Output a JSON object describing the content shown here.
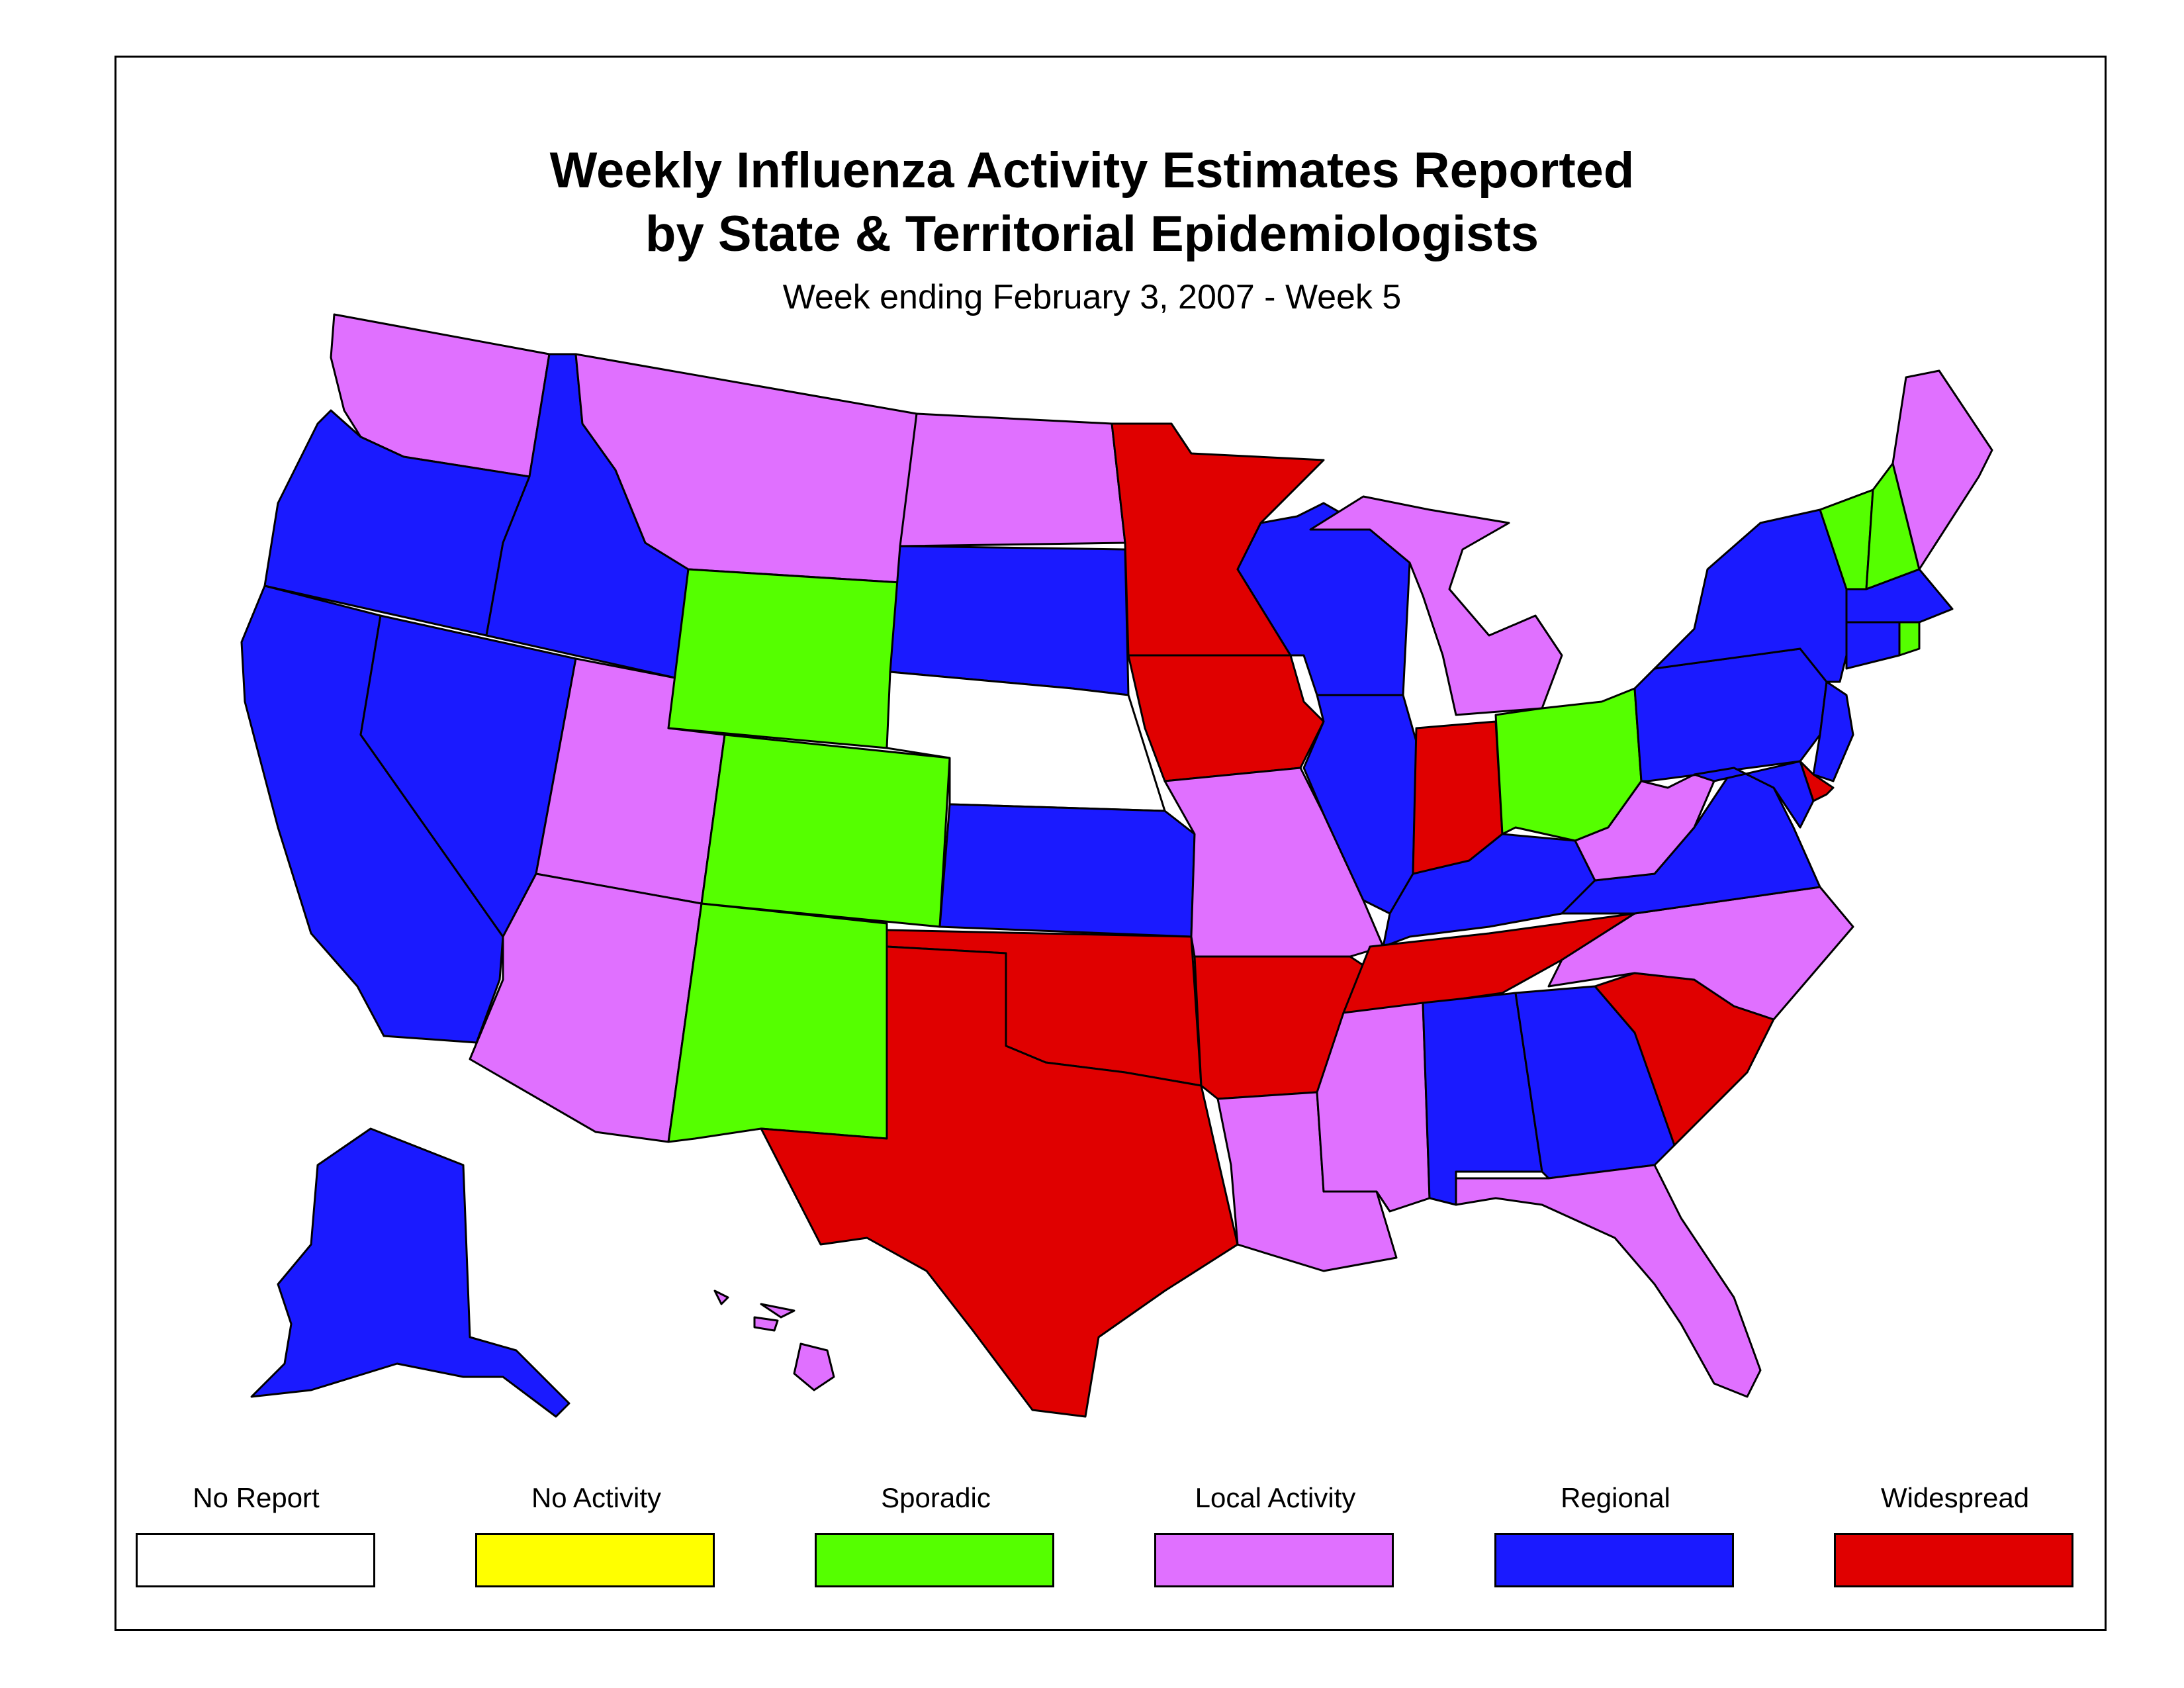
{
  "title_line1": "Weekly Influenza Activity Estimates Reported",
  "title_line2": "by State & Territorial Epidemiologists",
  "subtitle": "Week ending February 3, 2007 - Week 5",
  "legend": [
    {
      "label": "No Report",
      "color": "#ffffff"
    },
    {
      "label": "No Activity",
      "color": "#ffff00"
    },
    {
      "label": "Sporadic",
      "color": "#55ff00"
    },
    {
      "label": "Local Activity",
      "color": "#e070ff"
    },
    {
      "label": "Regional",
      "color": "#1a1aff"
    },
    {
      "label": "Widespread",
      "color": "#e00000"
    }
  ],
  "activity_levels": {
    "Alabama": "Regional",
    "Alaska": "Regional",
    "Arizona": "Local Activity",
    "Arkansas": "Widespread",
    "California": "Regional",
    "Colorado": "Sporadic",
    "Connecticut": "Regional",
    "Delaware": "Widespread",
    "Florida": "Local Activity",
    "Georgia": "Regional",
    "Hawaii": "Local Activity",
    "Idaho": "Regional",
    "Illinois": "Regional",
    "Indiana": "Widespread",
    "Iowa": "Widespread",
    "Kansas": "Regional",
    "Kentucky": "Regional",
    "Louisiana": "Local Activity",
    "Maine": "Local Activity",
    "Maryland": "Regional",
    "Massachusetts": "Regional",
    "Michigan": "Local Activity",
    "Minnesota": "Widespread",
    "Mississippi": "Local Activity",
    "Missouri": "Local Activity",
    "Montana": "Local Activity",
    "Nebraska": "No Report",
    "Nevada": "Regional",
    "New Hampshire": "Sporadic",
    "New Jersey": "Regional",
    "New Mexico": "Sporadic",
    "New York": "Regional",
    "North Carolina": "Local Activity",
    "North Dakota": "Local Activity",
    "Ohio": "Sporadic",
    "Oklahoma": "Widespread",
    "Oregon": "Regional",
    "Pennsylvania": "Regional",
    "Rhode Island": "Sporadic",
    "South Carolina": "Widespread",
    "South Dakota": "Regional",
    "Tennessee": "Widespread",
    "Texas": "Widespread",
    "Utah": "Local Activity",
    "Vermont": "Sporadic",
    "Virginia": "Regional",
    "Washington": "Local Activity",
    "West Virginia": "Local Activity",
    "Wisconsin": "Regional",
    "Wyoming": "Sporadic"
  }
}
